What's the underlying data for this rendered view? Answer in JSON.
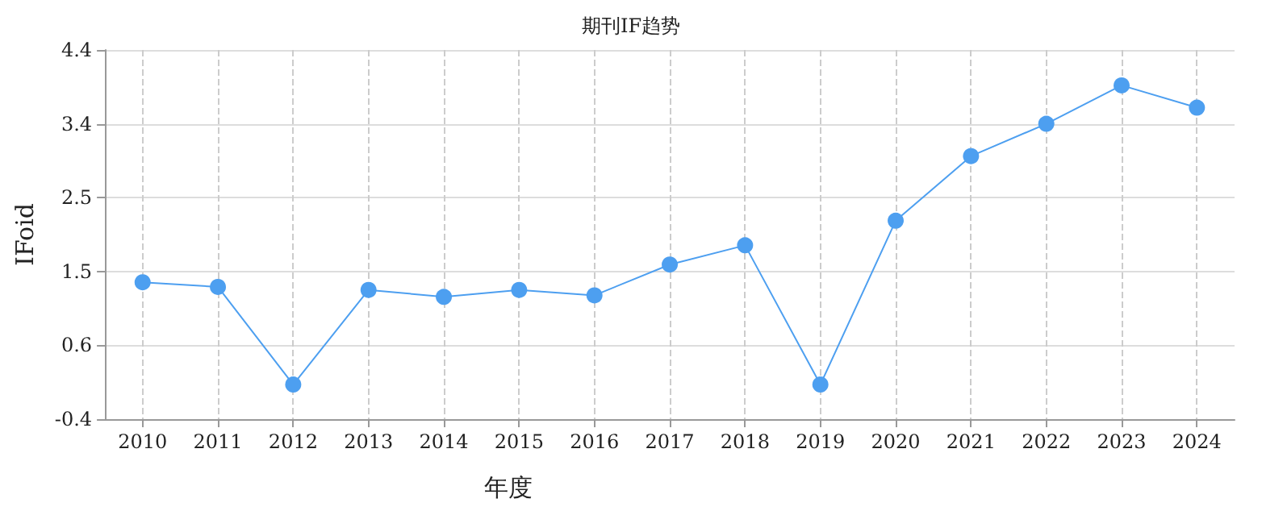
{
  "chart_data": {
    "type": "line",
    "title": "期刊IF趋势",
    "xlabel": "年度",
    "ylabel": "IFoid",
    "x": [
      2010,
      2011,
      2012,
      2013,
      2014,
      2015,
      2016,
      2017,
      2018,
      2019,
      2020,
      2021,
      2022,
      2023,
      2024
    ],
    "series": [
      {
        "color": "#4d9ff0",
        "values": [
          1.38,
          1.32,
          0.05,
          1.28,
          1.19,
          1.28,
          1.21,
          1.61,
          1.86,
          0.05,
          2.18,
          3.02,
          3.44,
          3.94,
          3.65
        ]
      }
    ],
    "xlim": [
      2009.5,
      2024.5
    ],
    "xticks": [
      2010,
      2011,
      2012,
      2013,
      2014,
      2015,
      2016,
      2017,
      2018,
      2019,
      2020,
      2021,
      2022,
      2023,
      2024
    ],
    "ylim": [
      -0.4,
      4.4
    ],
    "yticks": [
      -0.4,
      {
        "value": 0.56,
        "label": "0.6"
      },
      {
        "value": 1.52,
        "label": "1.5"
      },
      {
        "value": 2.48,
        "label": "2.5"
      },
      {
        "value": 3.44,
        "label": "3.4"
      },
      4.4
    ],
    "grid": true,
    "marker": "circle",
    "line_style": "solid"
  }
}
